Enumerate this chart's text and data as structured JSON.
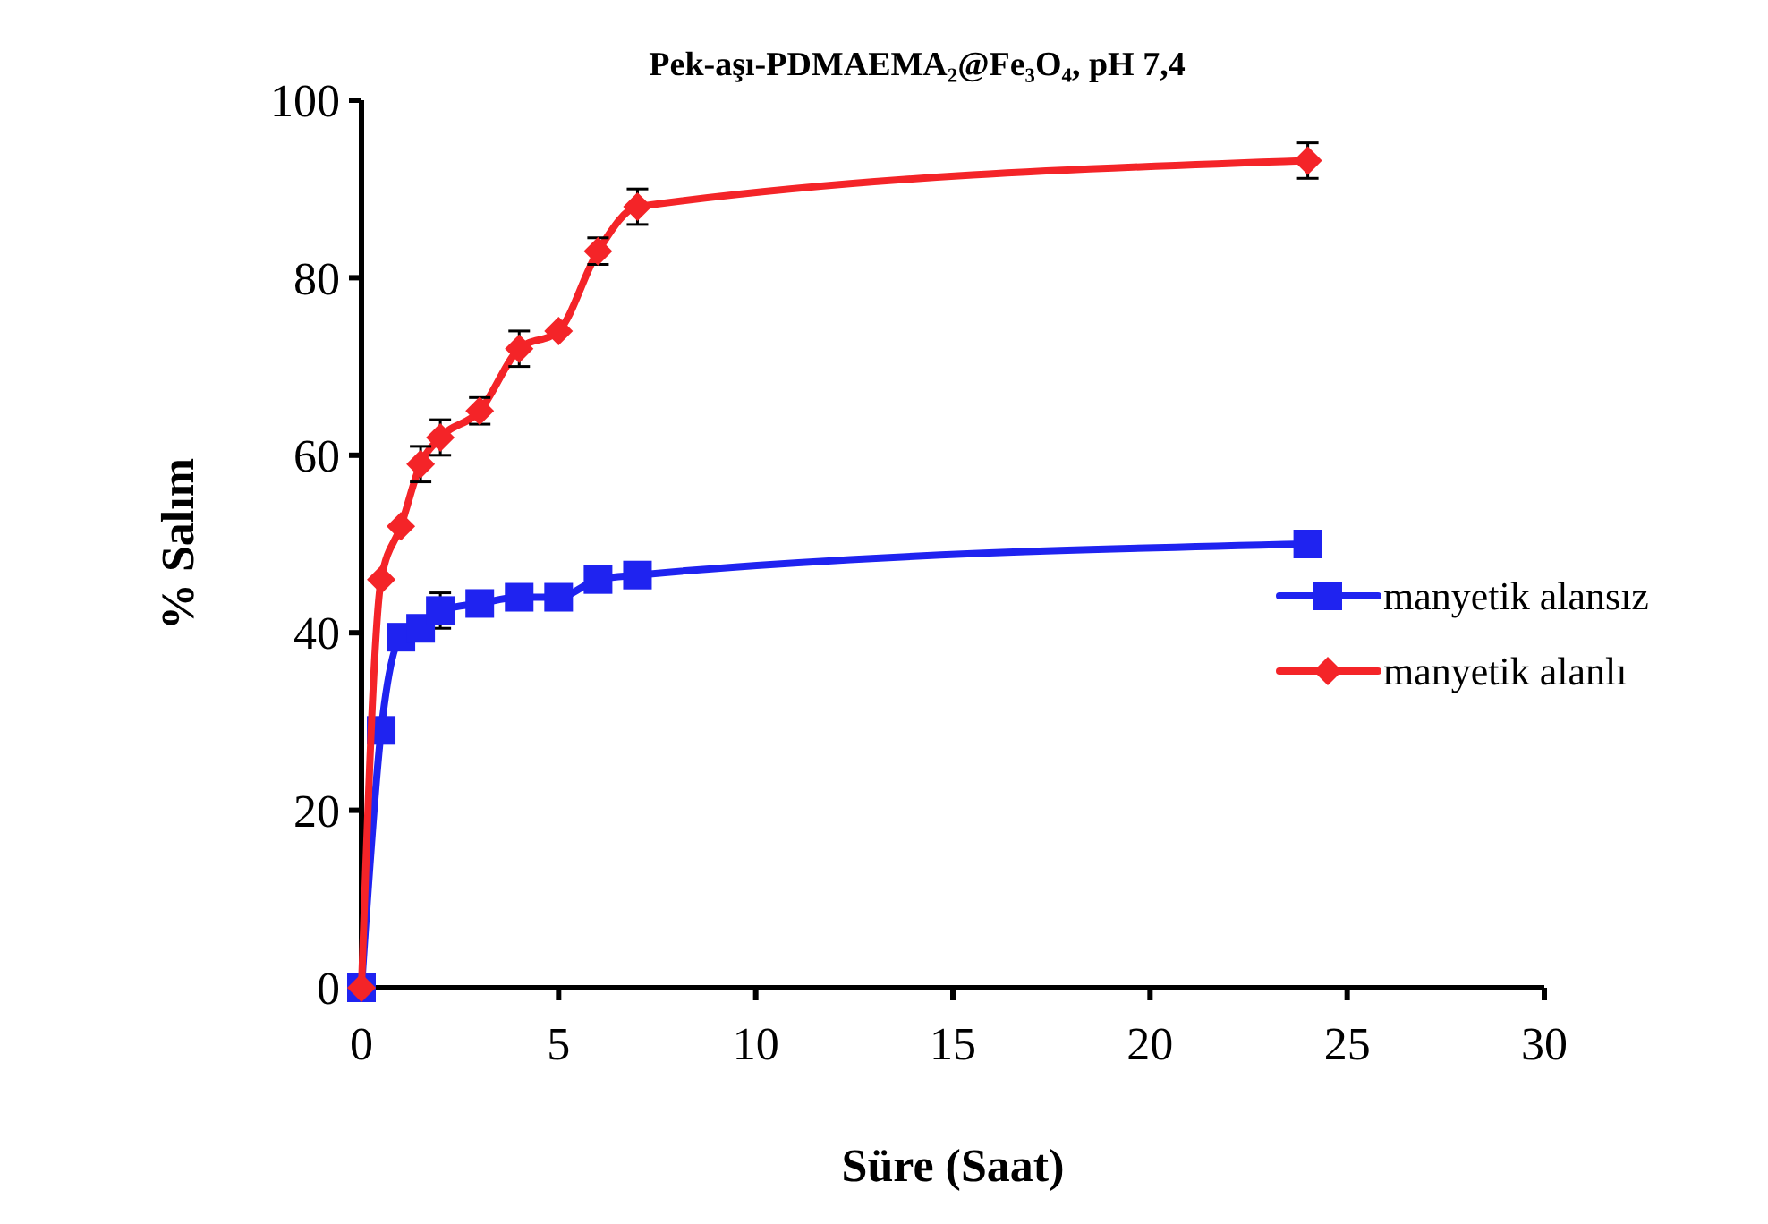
{
  "chart_data": {
    "type": "line",
    "title": "Pek-aşı-PDMAEMA₂@Fe₃O₄, pH 7,4",
    "xlabel": "Süre (Saat)",
    "ylabel": "% Salım",
    "xlim": [
      0,
      30
    ],
    "xticks": [
      0,
      5,
      10,
      15,
      20,
      25,
      30
    ],
    "ylim": [
      0,
      100
    ],
    "yticks": [
      0,
      20,
      40,
      60,
      80,
      100
    ],
    "legend": "right",
    "grid": false,
    "series": [
      {
        "name": "manyetik alansız",
        "color": "#1f23f0",
        "marker": "square",
        "x": [
          0,
          0.5,
          1,
          1.5,
          2,
          3,
          4,
          5,
          6,
          7,
          24
        ],
        "values": [
          0,
          29,
          39.5,
          40.5,
          42.5,
          43.3,
          44,
          44,
          46,
          46.5,
          50
        ],
        "errors": [
          null,
          null,
          null,
          null,
          2,
          null,
          null,
          null,
          null,
          null,
          null
        ]
      },
      {
        "name": "manyetik alanlı",
        "color": "#f42428",
        "marker": "diamond",
        "x": [
          0,
          0.5,
          1,
          1.5,
          2,
          3,
          4,
          5,
          6,
          7,
          24
        ],
        "values": [
          0,
          46,
          52,
          59,
          62,
          65,
          72,
          74,
          83,
          88,
          93.2
        ],
        "errors": [
          null,
          null,
          null,
          2,
          2,
          1.5,
          2,
          null,
          1.5,
          2,
          2
        ]
      }
    ]
  }
}
